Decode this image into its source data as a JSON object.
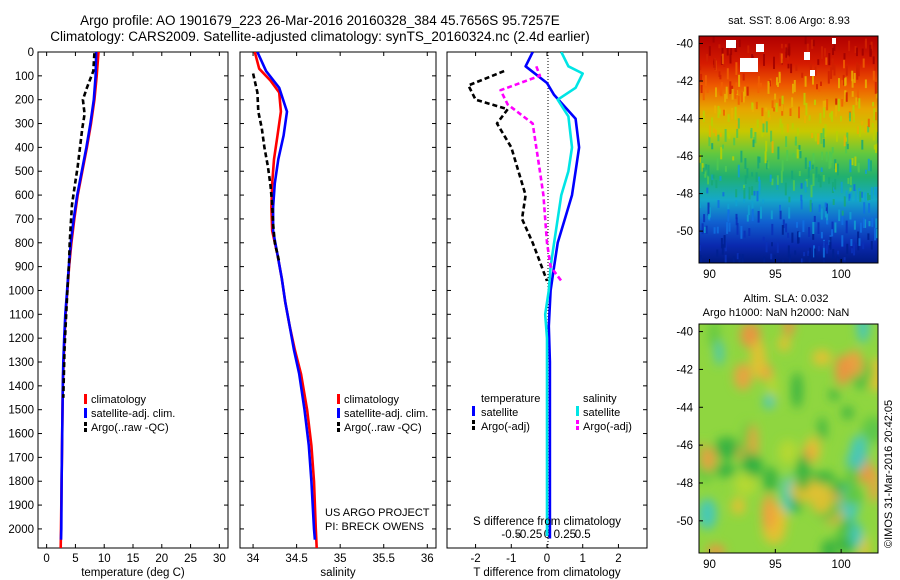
{
  "header": {
    "title_line1": "Argo profile: AO 1901679_223 26-Mar-2016 20160328_384 45.7656S 95.7257E",
    "title_line2": "Climatology: CARS2009. Satellite-adjusted climatology: synTS_20160324.nc (2.4d earlier)"
  },
  "colors": {
    "climatology": "#ff0000",
    "satellite": "#0000ff",
    "argo": "#000000",
    "satellite_salinity": "#00e5e5",
    "argo_salinity_adj": "#ff00ff"
  },
  "chart_data": [
    {
      "type": "line",
      "id": "temperature",
      "xlabel": "temperature (deg C)",
      "xlim": [
        -1.5,
        31.5
      ],
      "ylim": [
        0,
        2080
      ],
      "x_ticks": [
        0,
        5,
        10,
        15,
        20,
        25,
        30
      ],
      "y_ticks": [
        0,
        100,
        200,
        300,
        400,
        500,
        600,
        700,
        800,
        900,
        1000,
        1100,
        1200,
        1300,
        1400,
        1500,
        1600,
        1700,
        1800,
        1900,
        2000
      ],
      "legend": [
        "climatology",
        "satellite-adj. clim.",
        "Argo(..raw -QC)"
      ],
      "series": [
        {
          "name": "climatology",
          "style": "solid",
          "color": "#ff0000",
          "points": [
            [
              9.0,
              0
            ],
            [
              8.7,
              100
            ],
            [
              8.3,
              200
            ],
            [
              7.7,
              300
            ],
            [
              7.0,
              400
            ],
            [
              6.2,
              500
            ],
            [
              5.4,
              600
            ],
            [
              4.8,
              700
            ],
            [
              4.3,
              800
            ],
            [
              3.9,
              900
            ],
            [
              3.6,
              1000
            ],
            [
              3.3,
              1100
            ],
            [
              3.1,
              1200
            ],
            [
              2.95,
              1300
            ],
            [
              2.8,
              1400
            ],
            [
              2.7,
              1600
            ],
            [
              2.6,
              1800
            ],
            [
              2.5,
              2000
            ],
            [
              2.45,
              2080
            ]
          ]
        },
        {
          "name": "satellite-adj. clim.",
          "style": "solid",
          "color": "#0000ff",
          "points": [
            [
              8.6,
              0
            ],
            [
              8.5,
              100
            ],
            [
              8.2,
              200
            ],
            [
              7.6,
              300
            ],
            [
              6.9,
              400
            ],
            [
              6.1,
              500
            ],
            [
              5.3,
              600
            ],
            [
              4.7,
              700
            ],
            [
              4.2,
              800
            ],
            [
              3.85,
              900
            ],
            [
              3.55,
              1000
            ],
            [
              3.25,
              1100
            ],
            [
              3.05,
              1200
            ],
            [
              2.9,
              1300
            ],
            [
              2.8,
              1400
            ],
            [
              2.7,
              1600
            ],
            [
              2.6,
              1800
            ],
            [
              2.55,
              2000
            ],
            [
              2.5,
              2045
            ]
          ]
        },
        {
          "name": "Argo(..raw -QC)",
          "style": "dash",
          "color": "#000000",
          "points": [
            [
              8.3,
              5
            ],
            [
              8.1,
              80
            ],
            [
              7.0,
              150
            ],
            [
              6.3,
              200
            ],
            [
              6.6,
              260
            ],
            [
              6.2,
              320
            ],
            [
              5.8,
              400
            ],
            [
              5.4,
              480
            ],
            [
              4.9,
              560
            ],
            [
              4.4,
              640
            ],
            [
              4.2,
              720
            ],
            [
              4.0,
              800
            ],
            [
              3.9,
              880
            ],
            [
              3.7,
              960
            ],
            [
              3.5,
              1050
            ],
            [
              3.3,
              1150
            ],
            [
              3.1,
              1250
            ],
            [
              3.0,
              1350
            ],
            [
              2.9,
              1450
            ]
          ]
        }
      ]
    },
    {
      "type": "line",
      "id": "salinity",
      "xlabel": "salinity",
      "xlim": [
        33.85,
        36.1
      ],
      "ylim": [
        0,
        2080
      ],
      "x_ticks": [
        34,
        34.5,
        35,
        35.5,
        36
      ],
      "legend": [
        "climatology",
        "satellite-adj. clim.",
        "Argo(..raw -QC)"
      ],
      "series": [
        {
          "name": "climatology",
          "style": "solid",
          "color": "#ff0000",
          "points": [
            [
              34.02,
              0
            ],
            [
              34.07,
              70
            ],
            [
              34.2,
              120
            ],
            [
              34.3,
              170
            ],
            [
              34.32,
              250
            ],
            [
              34.28,
              350
            ],
            [
              34.24,
              450
            ],
            [
              34.22,
              550
            ],
            [
              34.21,
              650
            ],
            [
              34.22,
              750
            ],
            [
              34.28,
              850
            ],
            [
              34.33,
              950
            ],
            [
              34.37,
              1050
            ],
            [
              34.42,
              1150
            ],
            [
              34.48,
              1250
            ],
            [
              34.55,
              1350
            ],
            [
              34.62,
              1500
            ],
            [
              34.67,
              1650
            ],
            [
              34.7,
              1800
            ],
            [
              34.72,
              2000
            ],
            [
              34.73,
              2080
            ]
          ]
        },
        {
          "name": "satellite-adj. clim.",
          "style": "solid",
          "color": "#0000ff",
          "points": [
            [
              34.05,
              0
            ],
            [
              34.15,
              80
            ],
            [
              34.3,
              150
            ],
            [
              34.39,
              250
            ],
            [
              34.35,
              350
            ],
            [
              34.29,
              450
            ],
            [
              34.25,
              550
            ],
            [
              34.23,
              650
            ],
            [
              34.23,
              750
            ],
            [
              34.28,
              850
            ],
            [
              34.33,
              950
            ],
            [
              34.37,
              1050
            ],
            [
              34.42,
              1150
            ],
            [
              34.47,
              1250
            ],
            [
              34.53,
              1350
            ],
            [
              34.59,
              1500
            ],
            [
              34.64,
              1650
            ],
            [
              34.67,
              1800
            ],
            [
              34.7,
              2000
            ],
            [
              34.71,
              2045
            ]
          ]
        },
        {
          "name": "Argo(..raw -QC)",
          "style": "dash",
          "color": "#000000",
          "points": [
            [
              34.0,
              90
            ],
            [
              34.05,
              170
            ],
            [
              34.06,
              250
            ],
            [
              34.1,
              320
            ],
            [
              34.13,
              400
            ],
            [
              34.17,
              480
            ],
            [
              34.2,
              560
            ],
            [
              34.22,
              640
            ],
            [
              34.23,
              720
            ],
            [
              34.25,
              800
            ],
            [
              34.3,
              880
            ]
          ]
        }
      ]
    },
    {
      "type": "line",
      "id": "difference",
      "xlabel": "T difference from climatology",
      "xlabel_top": "S difference from climatology",
      "xlim": [
        -2.8,
        2.8
      ],
      "ylim": [
        0,
        2080
      ],
      "x_ticks": [
        -2,
        -1,
        0,
        1,
        2
      ],
      "x_ticks_top": [
        "-0.5",
        "-0.25",
        "0",
        "0.25",
        "0.5"
      ],
      "legend_headers": [
        "temperature",
        "salinity"
      ],
      "legend": [
        "satellite",
        "Argo(-adj)",
        "satellite",
        "Argo(-adj)"
      ],
      "series": [
        {
          "name": "temperature satellite",
          "style": "solid",
          "color": "#0000ff",
          "points": [
            [
              -0.4,
              0
            ],
            [
              -0.6,
              60
            ],
            [
              0.0,
              130
            ],
            [
              0.2,
              180
            ],
            [
              0.8,
              280
            ],
            [
              0.9,
              400
            ],
            [
              0.8,
              500
            ],
            [
              0.7,
              600
            ],
            [
              0.5,
              700
            ],
            [
              0.3,
              800
            ],
            [
              0.2,
              900
            ],
            [
              0.1,
              1000
            ],
            [
              0.05,
              1150
            ],
            [
              0.08,
              1300
            ],
            [
              0.08,
              1500
            ],
            [
              0.08,
              1700
            ],
            [
              0.08,
              1900
            ],
            [
              0.08,
              2040
            ]
          ]
        },
        {
          "name": "salinity satellite",
          "style": "solid",
          "color": "#00e5e5",
          "points": [
            [
              0.4,
              0
            ],
            [
              0.6,
              60
            ],
            [
              1.0,
              90
            ],
            [
              0.8,
              150
            ],
            [
              0.3,
              200
            ],
            [
              0.6,
              270
            ],
            [
              0.7,
              400
            ],
            [
              0.6,
              500
            ],
            [
              0.4,
              600
            ],
            [
              0.3,
              700
            ],
            [
              0.2,
              800
            ],
            [
              0.1,
              900
            ],
            [
              0.05,
              1000
            ],
            [
              -0.05,
              1100
            ],
            [
              0.0,
              1200
            ],
            [
              0.0,
              1400
            ],
            [
              0.0,
              1700
            ],
            [
              0.0,
              2030
            ]
          ]
        },
        {
          "name": "temperature Argo(-adj)",
          "style": "dash",
          "color": "#000000",
          "points": [
            [
              -1.2,
              80
            ],
            [
              -2.2,
              140
            ],
            [
              -2.0,
              200
            ],
            [
              -1.1,
              240
            ],
            [
              -1.4,
              300
            ],
            [
              -1.0,
              400
            ],
            [
              -0.8,
              500
            ],
            [
              -0.6,
              600
            ],
            [
              -0.7,
              700
            ],
            [
              -0.4,
              800
            ],
            [
              -0.2,
              880
            ],
            [
              0.0,
              960
            ]
          ]
        },
        {
          "name": "salinity Argo(-adj)",
          "style": "dash",
          "color": "#ff00ff",
          "points": [
            [
              -0.3,
              60
            ],
            [
              -0.2,
              100
            ],
            [
              -1.3,
              160
            ],
            [
              -1.1,
              220
            ],
            [
              -0.4,
              300
            ],
            [
              -0.3,
              400
            ],
            [
              -0.2,
              500
            ],
            [
              -0.1,
              600
            ],
            [
              -0.05,
              700
            ],
            [
              0.0,
              800
            ],
            [
              0.1,
              900
            ],
            [
              0.4,
              960
            ]
          ]
        }
      ]
    },
    {
      "type": "heatmap",
      "id": "sst_map",
      "title": "sat. SST: 8.06 Argo: 8.93",
      "x_ticks": [
        90,
        95,
        100
      ],
      "y_ticks": [
        -40,
        -42,
        -44,
        -46,
        -48,
        -50
      ],
      "xlim": [
        89.2,
        102.8
      ],
      "ylim": [
        -51.7,
        -39.6
      ]
    },
    {
      "type": "heatmap",
      "id": "sla_map",
      "title_line1": "Altim. SLA: 0.032",
      "title_line2": "Argo h1000: NaN h2000: NaN",
      "x_ticks": [
        90,
        95,
        100
      ],
      "y_ticks": [
        -40,
        -42,
        -44,
        -46,
        -48,
        -50
      ],
      "xlim": [
        89.2,
        102.8
      ],
      "ylim": [
        -51.7,
        -39.6
      ]
    }
  ],
  "annotations": {
    "project_line1": "US ARGO PROJECT",
    "project_line2": "PI: BRECK OWENS",
    "credit": "©IMOS 31-Mar-2016 20:42:05"
  }
}
